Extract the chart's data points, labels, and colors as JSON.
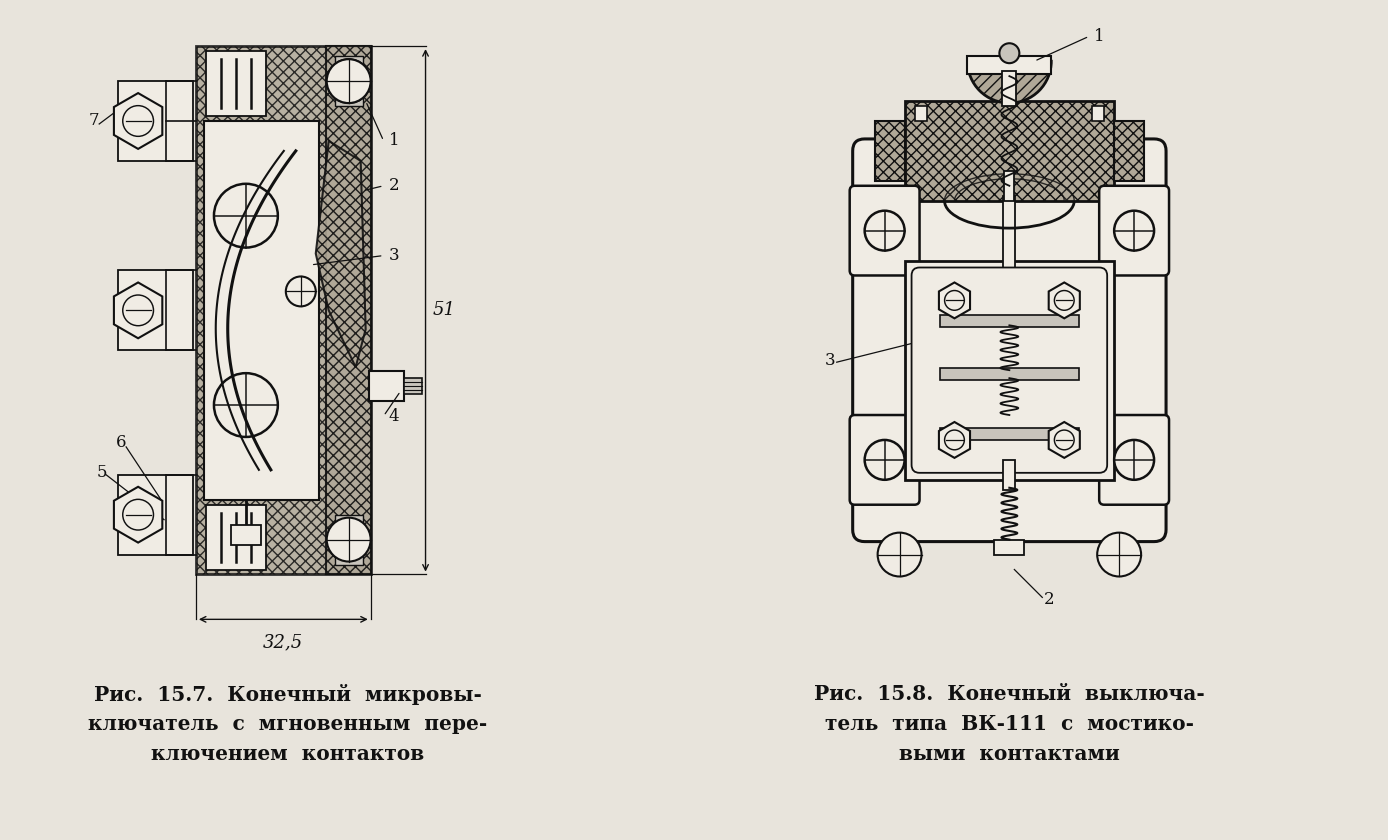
{
  "background_color": "#e8e4dc",
  "caption_left_line1": "Рис.  15.7.  Конечный  микровы-",
  "caption_left_line2": "ключатель  с  мгновенным  пере-",
  "caption_left_line3": "ключением  контактов",
  "caption_right_line1": "Рис.  15.8.  Конечный  выключа-",
  "caption_right_line2": "тель  типа  ВК-111  с  мостико-",
  "caption_right_line3": "выми  контактами",
  "fig_width": 13.88,
  "fig_height": 8.4,
  "dpi": 100
}
